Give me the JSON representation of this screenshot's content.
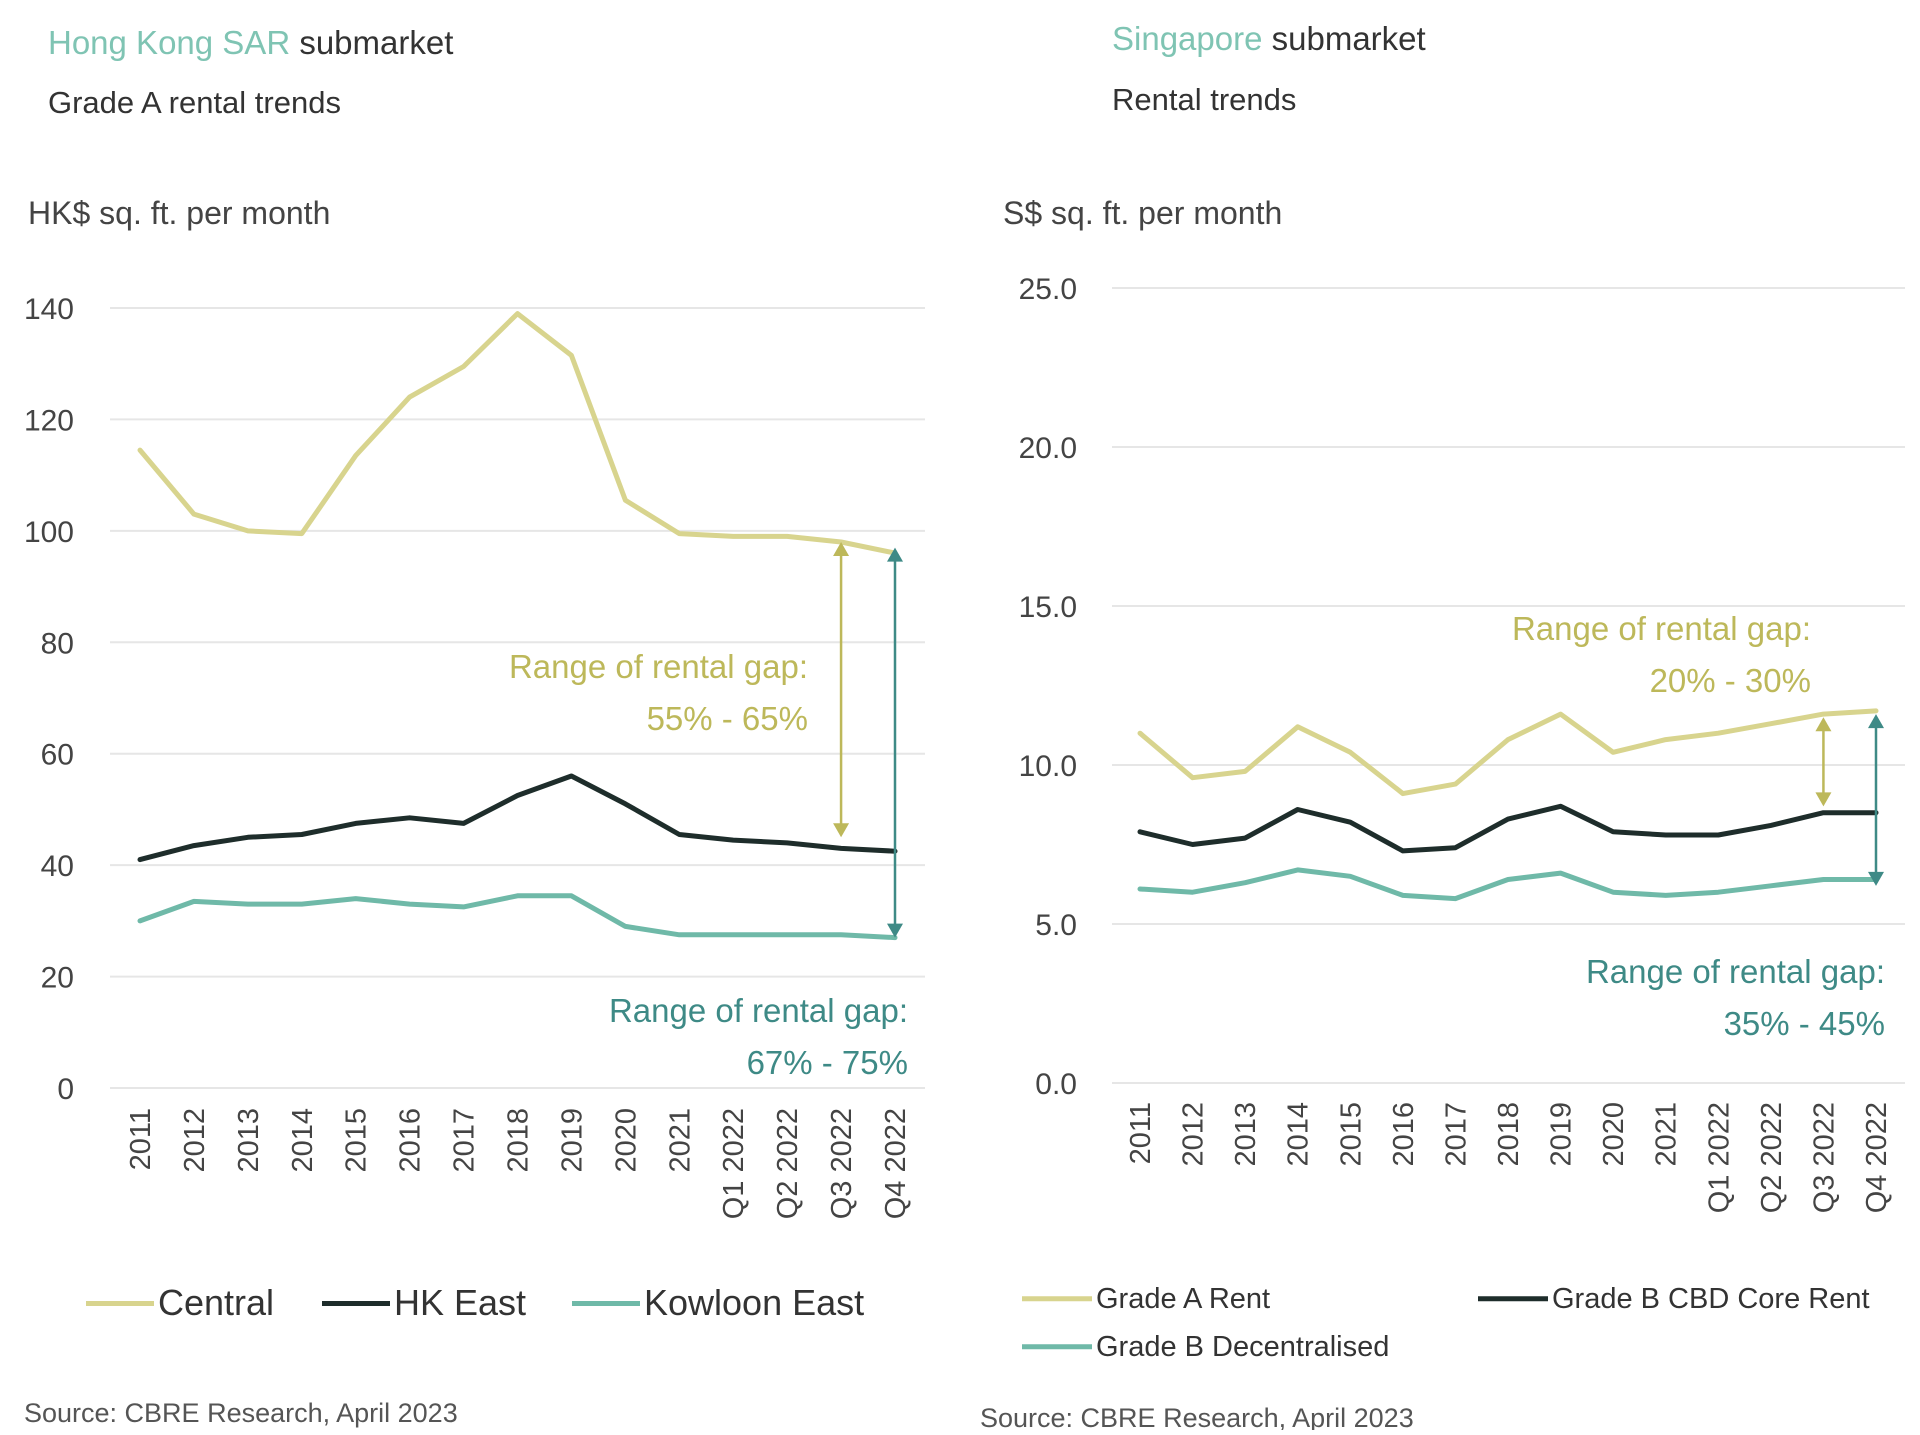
{
  "colors": {
    "accent": "#7FC4B3",
    "text": "#333333",
    "muted": "#555555",
    "grid": "#e6e6e6",
    "central": "#D8D48E",
    "hkeast": "#1E2D2B",
    "kowloon": "#6FB9A8",
    "gapA": "#BDB85A",
    "gapB": "#3E8A86"
  },
  "left": {
    "title_accent": "Hong Kong SAR",
    "title_rest": " submarket",
    "subtitle": "Grade A rental trends",
    "unit": "HK$ sq. ft. per month",
    "source": "Source: CBRE Research, April 2023"
  },
  "right": {
    "title_accent": "Singapore",
    "title_rest": " submarket",
    "subtitle": "Rental trends",
    "unit": "S$ sq. ft. per month",
    "source": "Source: CBRE Research, April 2023"
  },
  "chart_data": [
    {
      "type": "line",
      "title": "Hong Kong SAR submarket — Grade A rental trends",
      "ylabel": "HK$ sq. ft. per month",
      "ylim": [
        0,
        140
      ],
      "yticks": [
        0,
        20,
        40,
        60,
        80,
        100,
        120,
        140
      ],
      "ytick_labels": [
        "0",
        "20",
        "40",
        "60",
        "80",
        "100",
        "120",
        "140"
      ],
      "categories": [
        "2011",
        "2012",
        "2013",
        "2014",
        "2015",
        "2016",
        "2017",
        "2018",
        "2019",
        "2020",
        "2021",
        "Q1 2022",
        "Q2 2022",
        "Q3 2022",
        "Q4 2022"
      ],
      "series": [
        {
          "name": "Central",
          "color_key": "central",
          "values": [
            114.5,
            103,
            100,
            99.5,
            113.5,
            124,
            129.5,
            139,
            131.5,
            105.5,
            99.5,
            99,
            99,
            98,
            96
          ]
        },
        {
          "name": "HK East",
          "color_key": "hkeast",
          "values": [
            41,
            43.5,
            45,
            45.5,
            47.5,
            48.5,
            47.5,
            52.5,
            56,
            51,
            45.5,
            44.5,
            44,
            43,
            42.5
          ]
        },
        {
          "name": "Kowloon East",
          "color_key": "kowloon",
          "values": [
            30,
            33.5,
            33,
            33,
            34,
            33,
            32.5,
            34.5,
            34.5,
            29,
            27.5,
            27.5,
            27.5,
            27.5,
            27
          ]
        }
      ],
      "annotations": [
        {
          "line1": "Range of rental gap:",
          "line2": "55% - 65%",
          "color_key": "gapA",
          "arrow_category": "Q3 2022",
          "from": 98,
          "to": 45
        },
        {
          "line1": "Range of rental gap:",
          "line2": "67% - 75%",
          "color_key": "gapB",
          "arrow_category": "Q4 2022",
          "from": 97,
          "to": 27
        }
      ],
      "legend": "bottom"
    },
    {
      "type": "line",
      "title": "Singapore submarket — Rental trends",
      "ylabel": "S$ sq. ft. per month",
      "ylim": [
        0,
        25
      ],
      "yticks": [
        0,
        5,
        10,
        15,
        20,
        25
      ],
      "ytick_labels": [
        "0.0",
        "5.0",
        "10.0",
        "15.0",
        "20.0",
        "25.0"
      ],
      "categories": [
        "2011",
        "2012",
        "2013",
        "2014",
        "2015",
        "2016",
        "2017",
        "2018",
        "2019",
        "2020",
        "2021",
        "Q1 2022",
        "Q2 2022",
        "Q3 2022",
        "Q4 2022"
      ],
      "series": [
        {
          "name": "Grade A Rent",
          "color_key": "central",
          "values": [
            11.0,
            9.6,
            9.8,
            11.2,
            10.4,
            9.1,
            9.4,
            10.8,
            11.6,
            10.4,
            10.8,
            11.0,
            11.3,
            11.6,
            11.7
          ]
        },
        {
          "name": "Grade B CBD Core Rent",
          "color_key": "hkeast",
          "values": [
            7.9,
            7.5,
            7.7,
            8.6,
            8.2,
            7.3,
            7.4,
            8.3,
            8.7,
            7.9,
            7.8,
            7.8,
            8.1,
            8.5,
            8.5
          ]
        },
        {
          "name": "Grade B Decentralised",
          "color_key": "kowloon",
          "values": [
            6.1,
            6.0,
            6.3,
            6.7,
            6.5,
            5.9,
            5.8,
            6.4,
            6.6,
            6.0,
            5.9,
            6.0,
            6.2,
            6.4,
            6.4
          ]
        }
      ],
      "annotations": [
        {
          "line1": "Range of rental gap:",
          "line2": "20% - 30%",
          "color_key": "gapA",
          "arrow_category": "Q3 2022",
          "from": 11.5,
          "to": 8.7
        },
        {
          "line1": "Range of rental gap:",
          "line2": "35% - 45%",
          "color_key": "gapB",
          "arrow_category": "Q4 2022",
          "from": 11.6,
          "to": 6.2
        }
      ],
      "legend": "bottom"
    }
  ]
}
